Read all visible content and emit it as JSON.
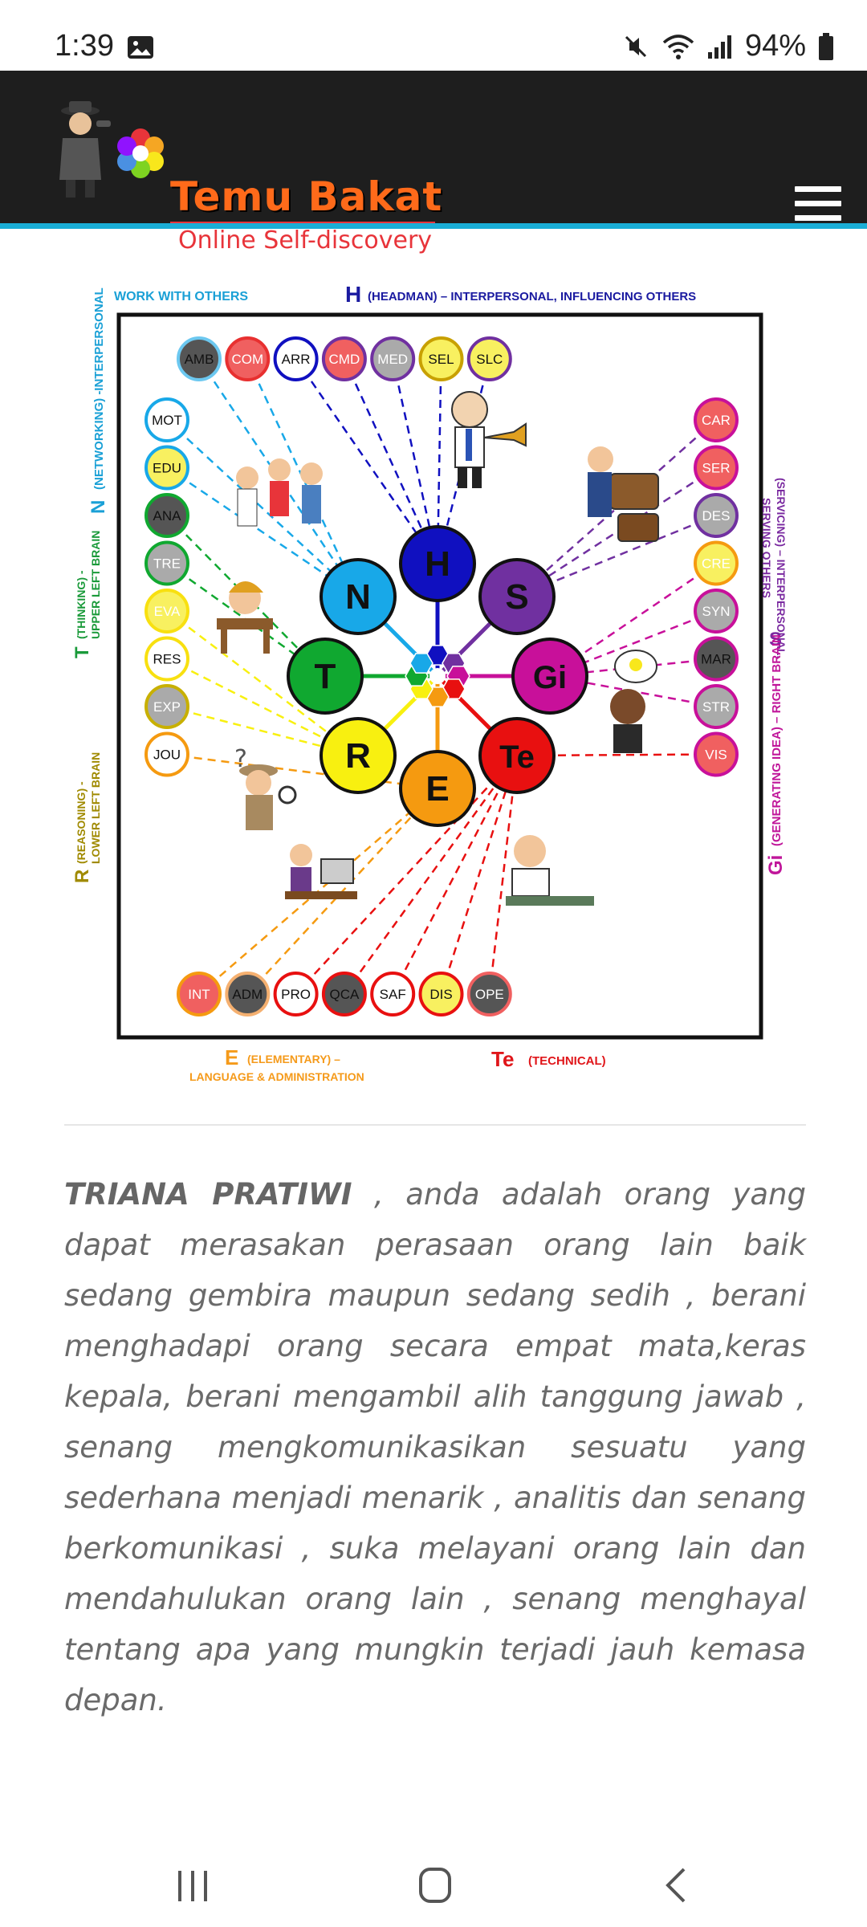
{
  "status": {
    "time": "1:39",
    "battery": "94%"
  },
  "header": {
    "brand": "Temu Bakat",
    "tagline": "Online Self-discovery"
  },
  "diagram": {
    "labels": {
      "top_work": "WORK WITH OTHERS",
      "h_letter": "H",
      "h_desc": "(HEADMAN) – INTERPERSONAL, INFLUENCING OTHERS",
      "n_letter": "N",
      "n_desc": "(NETWORKING) -INTERPERSONAL",
      "t_letter": "T",
      "t_desc1": "(THINKING) -",
      "t_desc2": "UPPER LEFT BRAIN",
      "r_letter": "R",
      "r_desc1": "(REASONING) -",
      "r_desc2": "LOWER LEFT BRAIN",
      "s_letter": "S",
      "s_desc1": "(SERVICING) – INTERPERSONAL,",
      "s_desc2": "SERVING OTHERS",
      "gi_letter": "Gi",
      "gi_desc": "(GENERATING IDEA) – RIGHT BRAIN",
      "e_letter": "E",
      "e_desc1": "(ELEMENTARY) –",
      "e_desc2": "LANGUAGE & ADMINISTRATION",
      "te_letter": "Te",
      "te_desc": "(TECHNICAL)"
    },
    "hubs": [
      "H",
      "S",
      "Gi",
      "Te",
      "E",
      "R",
      "T",
      "N"
    ],
    "top_row": [
      "AMB",
      "COM",
      "ARR",
      "CMD",
      "MED",
      "SEL",
      "SLC"
    ],
    "left_col": [
      "MOT",
      "EDU",
      "ANA",
      "TRE",
      "EVA",
      "RES",
      "EXP",
      "JOU"
    ],
    "right_col": [
      "CAR",
      "SER",
      "DES",
      "CRE",
      "SYN",
      "MAR",
      "STR",
      "VIS"
    ],
    "bottom_row": [
      "INT",
      "ADM",
      "PRO",
      "QCA",
      "SAF",
      "DIS",
      "OPE"
    ]
  },
  "description": {
    "name": "TRIANA PRATIWI",
    "text": " , anda adalah orang yang dapat merasakan perasaan orang lain baik sedang gembira maupun sedang sedih , berani menghadapi orang secara empat mata,keras kepala, berani mengambil alih tanggung jawab , senang mengkomunikasikan sesuatu yang sederhana menjadi menarik , analitis dan senang berkomunikasi , suka melayani orang lain dan mendahulukan orang lain , senang menghayal tentang apa yang mungkin terjadi jauh kemasa depan."
  },
  "colors": {
    "header_bg": "#1e1e1e",
    "accent": "#1aaed6",
    "brand_orange": "#ff6a1a",
    "brand_red": "#e8343a"
  }
}
